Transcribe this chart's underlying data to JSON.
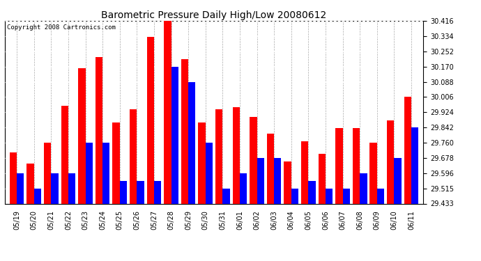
{
  "title": "Barometric Pressure Daily High/Low 20080612",
  "copyright": "Copyright 2008 Cartronics.com",
  "dates": [
    "05/19",
    "05/20",
    "05/21",
    "05/22",
    "05/23",
    "05/24",
    "05/25",
    "05/26",
    "05/27",
    "05/28",
    "05/29",
    "05/30",
    "05/31",
    "06/01",
    "06/02",
    "06/03",
    "06/04",
    "06/05",
    "06/06",
    "06/07",
    "06/08",
    "06/09",
    "06/10",
    "06/11"
  ],
  "highs": [
    29.71,
    29.65,
    29.76,
    29.96,
    30.16,
    30.22,
    29.87,
    29.94,
    30.33,
    30.416,
    30.21,
    29.87,
    29.94,
    29.95,
    29.9,
    29.81,
    29.66,
    29.77,
    29.7,
    29.84,
    29.84,
    29.76,
    29.88,
    30.006
  ],
  "lows": [
    29.596,
    29.515,
    29.596,
    29.596,
    29.76,
    29.76,
    29.556,
    29.556,
    29.556,
    30.17,
    30.088,
    29.76,
    29.515,
    29.596,
    29.678,
    29.678,
    29.515,
    29.556,
    29.515,
    29.515,
    29.596,
    29.515,
    29.678,
    29.842
  ],
  "high_color": "#ff0000",
  "low_color": "#0000ff",
  "background_color": "#ffffff",
  "plot_bg_color": "#ffffff",
  "ylim_min": 29.433,
  "ylim_max": 30.416,
  "yticks": [
    29.433,
    29.515,
    29.596,
    29.678,
    29.76,
    29.842,
    29.924,
    30.006,
    30.088,
    30.17,
    30.252,
    30.334,
    30.416
  ],
  "bar_width": 0.42,
  "title_fontsize": 10,
  "tick_fontsize": 7,
  "copyright_fontsize": 6.5
}
